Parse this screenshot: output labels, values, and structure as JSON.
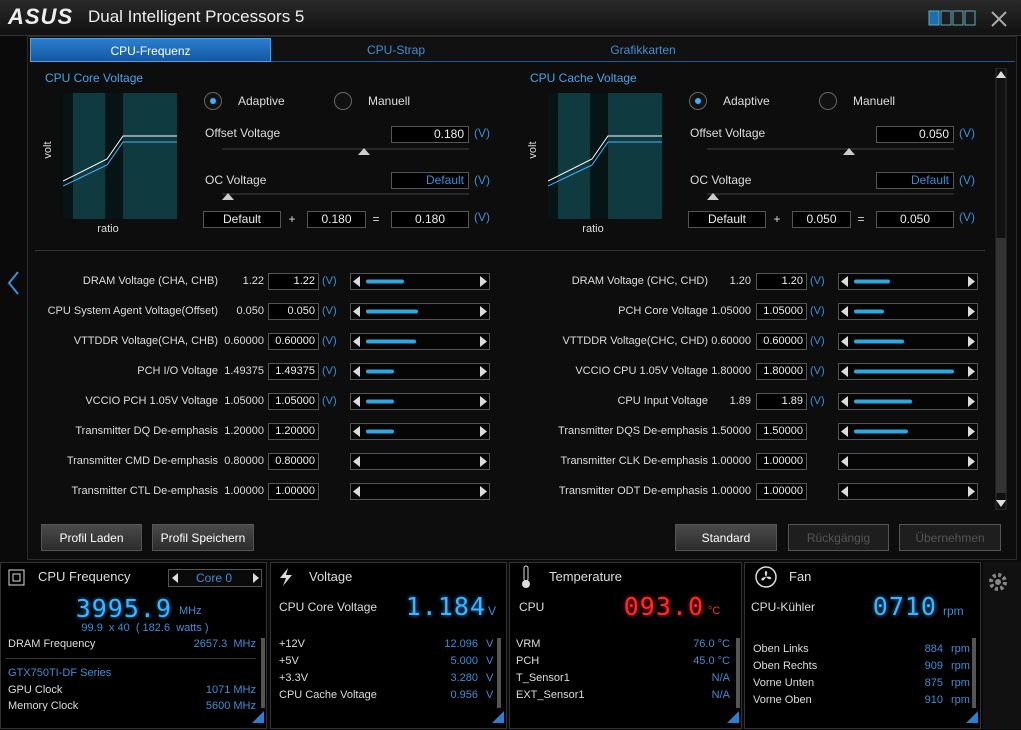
{
  "header": {
    "logo": "ASUS",
    "title": "Dual Intelligent Processors 5"
  },
  "tabs": [
    "CPU-Frequenz",
    "CPU-Strap",
    "Grafikkarten"
  ],
  "voltage_panels": [
    {
      "title": "CPU Core Voltage",
      "axis_y": "volt",
      "axis_x": "ratio",
      "modes": [
        "Adaptive",
        "Manuell"
      ],
      "offset_label": "Offset Voltage",
      "offset_value": "0.180",
      "offset_unit": "(V)",
      "oc_label": "OC Voltage",
      "oc_value": "Default",
      "oc_unit": "(V)",
      "sum": {
        "base": "Default",
        "plus": "+",
        "offset": "0.180",
        "equals": "=",
        "result": "0.180",
        "unit": "(V)"
      }
    },
    {
      "title": "CPU Cache Voltage",
      "axis_y": "volt",
      "axis_x": "ratio",
      "modes": [
        "Adaptive",
        "Manuell"
      ],
      "offset_label": "Offset Voltage",
      "offset_value": "0.050",
      "offset_unit": "(V)",
      "oc_label": "OC Voltage",
      "oc_value": "Default",
      "oc_unit": "(V)",
      "sum": {
        "base": "Default",
        "plus": "+",
        "offset": "0.050",
        "equals": "=",
        "result": "0.050",
        "unit": "(V)"
      }
    }
  ],
  "settings": {
    "left": [
      {
        "label": "DRAM Voltage (CHA, CHB)",
        "current": "1.22",
        "value": "1.22",
        "unit": "(V)"
      },
      {
        "label": "CPU System Agent Voltage(Offset)",
        "current": "0.050",
        "value": "0.050",
        "unit": "(V)"
      },
      {
        "label": "VTTDDR Voltage(CHA, CHB)",
        "current": "0.60000",
        "value": "0.60000",
        "unit": "(V)"
      },
      {
        "label": "PCH I/O Voltage",
        "current": "1.49375",
        "value": "1.49375",
        "unit": "(V)"
      },
      {
        "label": "VCCIO PCH 1.05V Voltage",
        "current": "1.05000",
        "value": "1.05000",
        "unit": "(V)"
      },
      {
        "label": "Transmitter DQ De-emphasis",
        "current": "1.20000",
        "value": "1.20000"
      },
      {
        "label": "Transmitter CMD De-emphasis",
        "current": "0.80000",
        "value": "0.80000"
      },
      {
        "label": "Transmitter CTL De-emphasis",
        "current": "1.00000",
        "value": "1.00000"
      }
    ],
    "right": [
      {
        "label": "DRAM Voltage (CHC, CHD)",
        "current": "1.20",
        "value": "1.20",
        "unit": "(V)"
      },
      {
        "label": "PCH Core Voltage",
        "current": "1.05000",
        "value": "1.05000",
        "unit": "(V)"
      },
      {
        "label": "VTTDDR Voltage(CHC, CHD)",
        "current": "0.60000",
        "value": "0.60000",
        "unit": "(V)"
      },
      {
        "label": "VCCIO CPU 1.05V Voltage",
        "current": "1.80000",
        "value": "1.80000",
        "unit": "(V)"
      },
      {
        "label": "CPU Input Voltage",
        "current": "1.89",
        "value": "1.89",
        "unit": "(V)"
      },
      {
        "label": "Transmitter DQS De-emphasis",
        "current": "1.50000",
        "value": "1.50000"
      },
      {
        "label": "Transmitter CLK De-emphasis",
        "current": "1.00000",
        "value": "1.00000"
      },
      {
        "label": "Transmitter ODT De-emphasis",
        "current": "1.00000",
        "value": "1.00000"
      }
    ]
  },
  "buttons": {
    "left": [
      "Profil Laden",
      "Profil Speichern"
    ],
    "right": [
      "Standard",
      "Rückgängig",
      "Übernehmen"
    ]
  },
  "monitors": {
    "cpu_frequency": {
      "title": "CPU Frequency",
      "core": "Core 0",
      "value": "3995.9",
      "unit": "MHz",
      "detail": "99.9  x 40  ( 182.6  watts )",
      "rows": [
        {
          "label": "DRAM Frequency",
          "value": "2657.3  MHz"
        }
      ],
      "gpu_name": "GTX750TI-DF Series",
      "gpu_rows": [
        {
          "label": "GPU Clock",
          "value": "1071 MHz"
        },
        {
          "label": "Memory Clock",
          "value": "5600 MHz"
        }
      ]
    },
    "voltage": {
      "title": "Voltage",
      "label": "CPU Core Voltage",
      "value": "1.184",
      "unit": "V",
      "rows": [
        {
          "label": "+12V",
          "value": "12.096",
          "unit": "V"
        },
        {
          "label": "+5V",
          "value": "5.000",
          "unit": "V"
        },
        {
          "label": "+3.3V",
          "value": "3.280",
          "unit": "V"
        },
        {
          "label": "CPU Cache Voltage",
          "value": "0.956",
          "unit": "V"
        }
      ]
    },
    "temperature": {
      "title": "Temperature",
      "label": "CPU",
      "value": "093.0",
      "unit": "°C",
      "rows": [
        {
          "label": "VRM",
          "value": "76.0 °C"
        },
        {
          "label": "PCH",
          "value": "45.0 °C"
        },
        {
          "label": "T_Sensor1",
          "value": "N/A"
        },
        {
          "label": "EXT_Sensor1",
          "value": "N/A"
        }
      ]
    },
    "fan": {
      "title": "Fan",
      "label": "CPU-Kühler",
      "value": "0710",
      "unit": "rpm",
      "rows": [
        {
          "label": "Oben Links",
          "value": "884",
          "unit": "rpm"
        },
        {
          "label": "Oben Rechts",
          "value": "909",
          "unit": "rpm"
        },
        {
          "label": "Vorne Unten",
          "value": "875",
          "unit": "rpm"
        },
        {
          "label": "Vorne Oben",
          "value": "910",
          "unit": "rpm"
        }
      ]
    }
  }
}
